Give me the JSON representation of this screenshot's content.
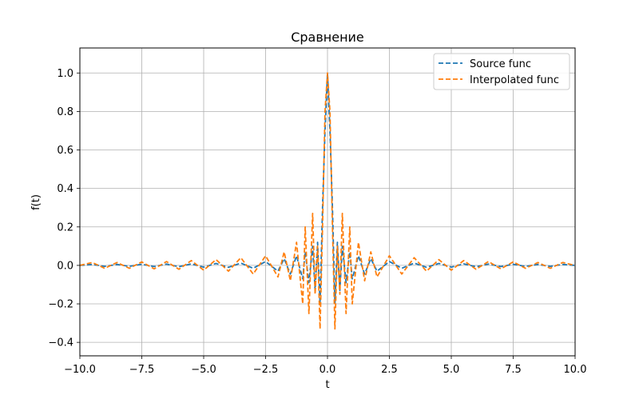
{
  "chart_data": {
    "type": "line",
    "title": "Сравнение",
    "xlabel": "t",
    "ylabel": "f(t)",
    "xlim": [
      -10,
      10
    ],
    "ylim": [
      -0.47,
      1.13
    ],
    "x_ticks": [
      -10,
      -7.5,
      -5,
      -2.5,
      0,
      2.5,
      5,
      7.5,
      10
    ],
    "x_tick_labels": [
      "−10.0",
      "−7.5",
      "−5.0",
      "−2.5",
      "0.0",
      "2.5",
      "5.0",
      "7.5",
      "10.0"
    ],
    "y_ticks": [
      -0.4,
      -0.2,
      0.0,
      0.2,
      0.4,
      0.6,
      0.8,
      1.0
    ],
    "y_tick_labels": [
      "−0.4",
      "−0.2",
      "0.0",
      "0.2",
      "0.4",
      "0.6",
      "0.8",
      "1.0"
    ],
    "grid": true,
    "legend_position": "top-right",
    "series": [
      {
        "name": "Source func",
        "color": "#1f77b4",
        "line_style": "dashed",
        "x": [
          -10.0,
          -9.5,
          -9.0,
          -8.5,
          -8.0,
          -7.5,
          -7.0,
          -6.5,
          -6.0,
          -5.5,
          -5.0,
          -4.5,
          -4.0,
          -3.5,
          -3.0,
          -2.5,
          -2.0,
          -1.75,
          -1.5,
          -1.25,
          -1.0,
          -0.9,
          -0.75,
          -0.6,
          -0.5,
          -0.4,
          -0.3,
          -0.2,
          -0.1,
          0.0,
          0.1,
          0.2,
          0.3,
          0.4,
          0.5,
          0.6,
          0.75,
          0.9,
          1.0,
          1.25,
          1.5,
          1.75,
          2.0,
          2.5,
          3.0,
          3.5,
          4.0,
          4.5,
          5.0,
          5.5,
          6.0,
          6.5,
          7.0,
          7.5,
          8.0,
          8.5,
          9.0,
          9.5,
          10.0
        ],
        "y": [
          0.0,
          0.005,
          -0.005,
          0.005,
          -0.005,
          0.006,
          -0.006,
          0.007,
          -0.007,
          0.008,
          -0.009,
          0.01,
          -0.01,
          0.012,
          -0.015,
          0.02,
          -0.03,
          0.035,
          -0.045,
          0.05,
          -0.07,
          0.07,
          -0.09,
          0.1,
          -0.13,
          0.12,
          -0.2,
          0.3,
          0.7,
          1.0,
          0.7,
          0.3,
          -0.2,
          0.12,
          -0.13,
          0.1,
          -0.09,
          0.07,
          -0.07,
          0.05,
          -0.045,
          0.035,
          -0.03,
          0.02,
          -0.015,
          0.012,
          -0.01,
          0.01,
          -0.009,
          0.008,
          -0.007,
          0.007,
          -0.006,
          0.006,
          -0.005,
          0.005,
          -0.005,
          0.005,
          0.0
        ]
      },
      {
        "name": "Interpolated func",
        "color": "#ff7f0e",
        "line_style": "dashed",
        "x": [
          -10.0,
          -9.5,
          -9.0,
          -8.5,
          -8.0,
          -7.5,
          -7.0,
          -6.5,
          -6.0,
          -5.5,
          -5.0,
          -4.5,
          -4.0,
          -3.5,
          -3.0,
          -2.5,
          -2.0,
          -1.75,
          -1.5,
          -1.25,
          -1.0,
          -0.9,
          -0.75,
          -0.6,
          -0.5,
          -0.4,
          -0.3,
          -0.2,
          -0.1,
          0.0,
          0.1,
          0.2,
          0.3,
          0.4,
          0.5,
          0.6,
          0.75,
          0.9,
          1.0,
          1.25,
          1.5,
          1.75,
          2.0,
          2.5,
          3.0,
          3.5,
          4.0,
          4.5,
          5.0,
          5.5,
          6.0,
          6.5,
          7.0,
          7.5,
          8.0,
          8.5,
          9.0,
          9.5,
          10.0
        ],
        "y": [
          0.0,
          0.015,
          -0.015,
          0.015,
          -0.015,
          0.018,
          -0.018,
          0.02,
          -0.02,
          0.025,
          -0.025,
          0.03,
          -0.03,
          0.04,
          -0.045,
          0.05,
          -0.06,
          0.07,
          -0.08,
          0.12,
          -0.2,
          0.2,
          -0.25,
          0.27,
          -0.15,
          0.1,
          -0.33,
          0.2,
          0.8,
          1.0,
          0.8,
          0.2,
          -0.33,
          0.1,
          -0.15,
          0.27,
          -0.25,
          0.2,
          -0.2,
          0.12,
          -0.08,
          0.07,
          -0.06,
          0.05,
          -0.045,
          0.04,
          -0.03,
          0.03,
          -0.025,
          0.025,
          -0.02,
          0.02,
          -0.018,
          0.018,
          -0.015,
          0.015,
          -0.015,
          0.015,
          0.0
        ]
      }
    ]
  }
}
